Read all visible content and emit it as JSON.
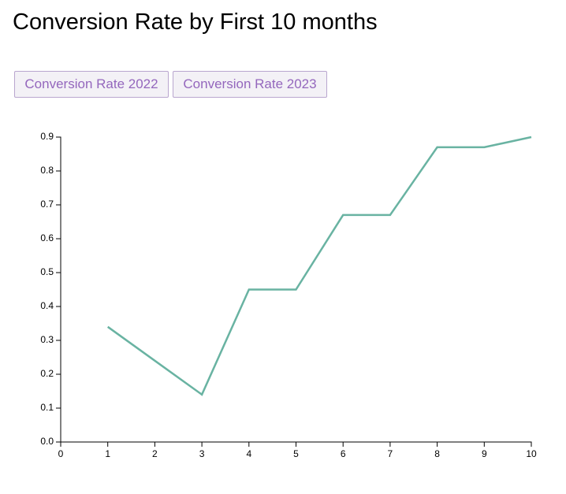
{
  "page": {
    "title": "Conversion Rate by First 10 months"
  },
  "buttons": [
    {
      "label": "Conversion Rate 2022"
    },
    {
      "label": "Conversion Rate 2023"
    }
  ],
  "colors": {
    "line": "#69b3a2",
    "button_text": "#9467bd",
    "button_border": "#b9a6cf",
    "button_bg": "#f3f1f6",
    "axis": "#000000"
  },
  "chart_data": {
    "type": "line",
    "title": "Conversion Rate by First 10 months",
    "xlabel": "",
    "ylabel": "",
    "xlim": [
      0,
      10
    ],
    "ylim": [
      0,
      0.9
    ],
    "x_ticks": [
      "0",
      "1",
      "2",
      "3",
      "4",
      "5",
      "6",
      "7",
      "8",
      "9",
      "10"
    ],
    "y_ticks": [
      "0.0",
      "0.1",
      "0.2",
      "0.3",
      "0.4",
      "0.5",
      "0.6",
      "0.7",
      "0.8",
      "0.9"
    ],
    "grid": false,
    "series": [
      {
        "x": [
          1,
          2,
          3,
          4,
          5,
          6,
          7,
          8,
          9,
          10
        ],
        "values": [
          0.34,
          0.24,
          0.14,
          0.45,
          0.45,
          0.67,
          0.67,
          0.87,
          0.87,
          0.9
        ]
      }
    ]
  }
}
